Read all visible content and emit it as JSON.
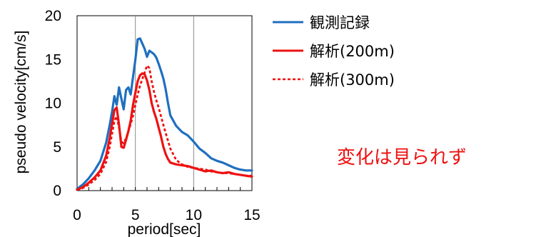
{
  "chart_data": {
    "type": "line",
    "xlabel": "period[sec]",
    "ylabel": "pseudo velocity[cm/s]",
    "xlim": [
      0,
      15
    ],
    "ylim": [
      0,
      20
    ],
    "xticks": [
      0,
      5,
      10,
      15
    ],
    "yticks": [
      0,
      5,
      10,
      15,
      20
    ],
    "grid": "vertical at 5 and 10",
    "legend_position": "top-right, outside plot",
    "series": [
      {
        "name": "観測記録",
        "color": "#1f6fbf",
        "style": "solid",
        "x": [
          0,
          0.5,
          1,
          1.5,
          2,
          2.5,
          2.8,
          3.0,
          3.2,
          3.4,
          3.6,
          3.8,
          4.0,
          4.2,
          4.4,
          4.6,
          4.8,
          5.0,
          5.2,
          5.4,
          5.6,
          5.8,
          6.0,
          6.2,
          6.4,
          6.6,
          6.8,
          7.0,
          7.2,
          7.4,
          7.6,
          7.8,
          8.0,
          8.5,
          9.0,
          9.5,
          10.0,
          10.5,
          11.0,
          11.5,
          12.0,
          12.5,
          13.0,
          13.5,
          14.0,
          14.5,
          15.0
        ],
        "y": [
          0.2,
          0.7,
          1.4,
          2.3,
          3.4,
          5.5,
          7.5,
          9.0,
          10.8,
          9.8,
          11.8,
          10.5,
          9.3,
          11.5,
          11.8,
          11.0,
          13.0,
          15.0,
          17.3,
          17.4,
          16.8,
          16.2,
          15.3,
          16.0,
          15.8,
          15.6,
          15.2,
          14.5,
          13.7,
          12.8,
          11.6,
          10.0,
          8.6,
          7.4,
          6.7,
          6.3,
          5.6,
          4.8,
          4.3,
          3.7,
          3.4,
          3.2,
          2.9,
          2.6,
          2.4,
          2.3,
          2.3
        ]
      },
      {
        "name": "解析(200m)",
        "color": "#ee1111",
        "style": "solid",
        "x": [
          0,
          0.5,
          1,
          1.5,
          2,
          2.5,
          2.8,
          3.0,
          3.2,
          3.4,
          3.6,
          3.8,
          4.0,
          4.2,
          4.4,
          4.6,
          4.8,
          5.0,
          5.2,
          5.4,
          5.6,
          5.8,
          6.0,
          6.2,
          6.4,
          6.6,
          6.8,
          7.0,
          7.2,
          7.4,
          7.6,
          7.8,
          8.0,
          8.5,
          9.0,
          9.5,
          10.0,
          10.5,
          11.0,
          11.5,
          12.0,
          12.5,
          13.0,
          13.5,
          14.0,
          14.5,
          15.0
        ],
        "y": [
          0.1,
          0.4,
          0.9,
          1.5,
          2.3,
          4.0,
          6.0,
          7.6,
          9.2,
          9.5,
          7.5,
          5.0,
          4.9,
          5.8,
          6.8,
          8.0,
          9.8,
          11.2,
          12.5,
          13.2,
          13.4,
          13.3,
          12.6,
          11.5,
          10.0,
          9.0,
          8.2,
          7.2,
          6.2,
          5.0,
          4.2,
          3.6,
          3.2,
          3.0,
          2.9,
          2.8,
          2.6,
          2.4,
          2.2,
          2.3,
          2.1,
          2.0,
          2.1,
          1.9,
          1.8,
          1.7,
          1.6
        ]
      },
      {
        "name": "解析(300m)",
        "color": "#ee1111",
        "style": "dashed",
        "x": [
          0,
          0.5,
          1,
          1.5,
          2,
          2.5,
          2.8,
          3.0,
          3.2,
          3.4,
          3.6,
          3.8,
          4.0,
          4.2,
          4.4,
          4.6,
          4.8,
          5.0,
          5.2,
          5.4,
          5.6,
          5.8,
          6.0,
          6.2,
          6.4,
          6.6,
          6.8,
          7.0,
          7.2,
          7.4,
          7.6,
          7.8,
          8.0,
          8.5,
          9.0,
          9.5,
          10.0,
          10.5,
          11.0,
          11.5,
          12.0,
          12.5,
          13.0,
          13.5,
          14.0,
          14.5,
          15.0
        ],
        "y": [
          0.1,
          0.3,
          0.7,
          1.2,
          1.9,
          3.3,
          5.0,
          6.5,
          8.0,
          8.5,
          7.2,
          5.6,
          5.4,
          6.0,
          6.8,
          7.6,
          8.6,
          9.8,
          11.0,
          12.0,
          12.8,
          13.5,
          14.3,
          14.0,
          12.5,
          11.3,
          10.3,
          9.5,
          8.5,
          7.5,
          6.6,
          5.7,
          4.8,
          3.5,
          3.0,
          2.7,
          2.6,
          2.5,
          2.4,
          2.2,
          2.1,
          2.0,
          2.0,
          1.9,
          1.8,
          1.7,
          1.7
        ]
      }
    ]
  },
  "annotation": {
    "text": "変化は見られず",
    "color": "#ee1111"
  }
}
